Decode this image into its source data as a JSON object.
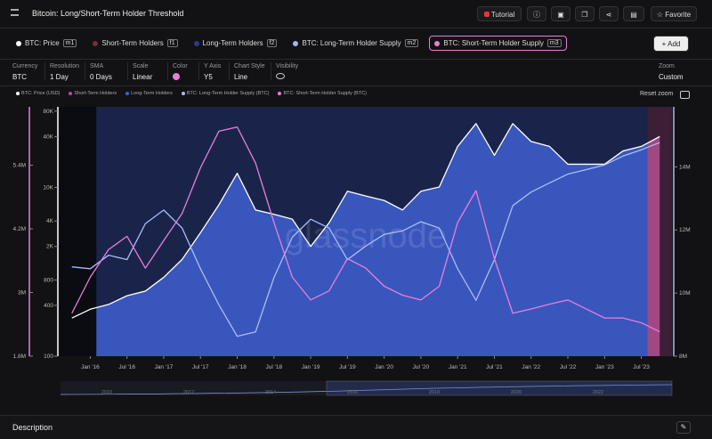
{
  "header": {
    "title": "Bitcoin: Long/Short-Term Holder Threshold",
    "buttons": [
      "Tutorial",
      "Favorite"
    ]
  },
  "chips": [
    {
      "label": "BTC: Price",
      "tag": "m1",
      "color": "#ffffff"
    },
    {
      "label": "Short-Term Holders",
      "tag": "f1",
      "color": "#7a2a3a"
    },
    {
      "label": "Long-Term Holders",
      "tag": "f2",
      "color": "#2b3a8c"
    },
    {
      "label": "BTC: Long-Term Holder Supply",
      "tag": "m2",
      "color": "#9fb4ff"
    },
    {
      "label": "BTC: Short-Term Holder Supply",
      "tag": "m3",
      "color": "#e77fd9"
    }
  ],
  "add_button": "Add",
  "settings": [
    {
      "label": "Currency",
      "value": "BTC"
    },
    {
      "label": "Resolution",
      "value": "1 Day"
    },
    {
      "label": "SMA",
      "value": "0 Days"
    },
    {
      "label": "Scale",
      "value": "Linear"
    },
    {
      "label": "Color",
      "swatch": "#e77fd9"
    },
    {
      "label": "Y Axis",
      "value": "Y5"
    },
    {
      "label": "Chart Style",
      "value": "Line"
    },
    {
      "label": "Visibility"
    },
    {
      "label": "Zoom",
      "value": "Custom"
    }
  ],
  "reset_zoom": "Reset zoom",
  "chart_data": {
    "type": "line",
    "watermark": "glassnode",
    "x": [
      "2015-10",
      "2016-01",
      "2016-04",
      "2016-07",
      "2016-10",
      "2017-01",
      "2017-04",
      "2017-07",
      "2017-10",
      "2018-01",
      "2018-04",
      "2018-07",
      "2018-10",
      "2019-01",
      "2019-04",
      "2019-07",
      "2019-10",
      "2020-01",
      "2020-04",
      "2020-07",
      "2020-10",
      "2021-01",
      "2021-04",
      "2021-07",
      "2021-10",
      "2022-01",
      "2022-04",
      "2022-07",
      "2022-10",
      "2023-01",
      "2023-04",
      "2023-07",
      "2023-10"
    ],
    "xlim": [
      "2015-08",
      "2023-12"
    ],
    "xticks": [
      {
        "value": "2016-01",
        "label": "Jan '16"
      },
      {
        "value": "2016-07",
        "label": "Jul '16"
      },
      {
        "value": "2017-01",
        "label": "Jan '17"
      },
      {
        "value": "2017-07",
        "label": "Jul '17"
      },
      {
        "value": "2018-01",
        "label": "Jan '18"
      },
      {
        "value": "2018-07",
        "label": "Jul '18"
      },
      {
        "value": "2019-01",
        "label": "Jan '19"
      },
      {
        "value": "2019-07",
        "label": "Jul '19"
      },
      {
        "value": "2020-01",
        "label": "Jan '20"
      },
      {
        "value": "2020-07",
        "label": "Jul '20"
      },
      {
        "value": "2021-01",
        "label": "Jan '21"
      },
      {
        "value": "2021-07",
        "label": "Jul '21"
      },
      {
        "value": "2022-01",
        "label": "Jan '22"
      },
      {
        "value": "2022-07",
        "label": "Jul '22"
      },
      {
        "value": "2023-01",
        "label": "Jan '23"
      },
      {
        "value": "2023-07",
        "label": "Jul '23"
      }
    ],
    "ylim": [
      100,
      90000
    ],
    "ylog": true,
    "yticks": [
      100,
      400,
      800,
      {
        "value": 2000,
        "label": "2K"
      },
      {
        "value": 4000,
        "label": "4K"
      },
      {
        "value": 10000,
        "label": "10K"
      },
      {
        "value": 40000,
        "label": "40K"
      },
      {
        "value": 80000,
        "label": "80K"
      }
    ],
    "y2lim": [
      8000000,
      15900000
    ],
    "y2ticks": [
      {
        "value": 8000000,
        "label": "8M"
      },
      {
        "value": 10000000,
        "label": "10M"
      },
      {
        "value": 12000000,
        "label": "12M"
      },
      {
        "value": 14000000,
        "label": "14M"
      }
    ],
    "y3lim": [
      1800000,
      6500000
    ],
    "y3ticks": [
      {
        "value": 1800000,
        "label": "1.8M"
      },
      {
        "value": 3000000,
        "label": "3M"
      },
      {
        "value": 4200000,
        "label": "4.2M"
      },
      {
        "value": 5400000,
        "label": "5.4M"
      }
    ],
    "series": [
      {
        "name": "BTC: Price (USD)",
        "color": "#ffffff",
        "axis": "y",
        "values": [
          283,
          360,
          410,
          520,
          590,
          860,
          1400,
          2900,
          6200,
          14700,
          5400,
          4800,
          4200,
          2000,
          3800,
          9000,
          7900,
          7000,
          5400,
          9000,
          10100,
          30600,
          57000,
          24000,
          57000,
          35000,
          30600,
          18800,
          18800,
          18800,
          27000,
          30600,
          40000
        ]
      },
      {
        "name": "Short-Term Holders",
        "color": "#b0508f",
        "spans": [
          [
            "2023-08",
            "2023-12"
          ]
        ]
      },
      {
        "name": "Long-Term Holders",
        "color": "#3f5fd1",
        "spans": [
          [
            "2016-02",
            "2023-08"
          ]
        ]
      },
      {
        "name": "BTC: Long-Term Holder Supply (BTC)",
        "color": "#a9bdf5",
        "axis": "y2",
        "values": [
          10830000,
          10770000,
          11200000,
          11060000,
          12200000,
          12630000,
          12060000,
          10770000,
          9630000,
          8630000,
          8770000,
          10490000,
          11770000,
          12340000,
          12060000,
          11060000,
          11490000,
          11860000,
          11970000,
          12260000,
          12060000,
          10770000,
          9770000,
          11060000,
          12770000,
          13200000,
          13490000,
          13770000,
          13910000,
          14060000,
          14340000,
          14540000,
          14770000
        ]
      },
      {
        "name": "BTC: Short-Term Holder Supply (BTC)",
        "color": "#e77fd9",
        "axis": "y3",
        "values": [
          2610000,
          3290000,
          3810000,
          4060000,
          3460000,
          3980000,
          4490000,
          5350000,
          6040000,
          6120000,
          5440000,
          4320000,
          3290000,
          2860000,
          3030000,
          3640000,
          3460000,
          3120000,
          2950000,
          2860000,
          3120000,
          4320000,
          4920000,
          3640000,
          2610000,
          2690000,
          2780000,
          2860000,
          2690000,
          2520000,
          2520000,
          2430000,
          2260000
        ]
      }
    ]
  },
  "navigator": {
    "years": [
      "2010",
      "2012",
      "2014",
      "2016",
      "2018",
      "2020",
      "2022"
    ]
  },
  "description": {
    "title": "Description"
  }
}
